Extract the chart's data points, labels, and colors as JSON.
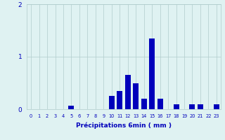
{
  "categories": [
    0,
    1,
    2,
    3,
    4,
    5,
    6,
    7,
    8,
    9,
    10,
    11,
    12,
    13,
    14,
    15,
    16,
    17,
    18,
    19,
    20,
    21,
    22,
    23
  ],
  "values": [
    0,
    0,
    0,
    0,
    0,
    0.07,
    0,
    0,
    0,
    0,
    0.25,
    0.35,
    0.65,
    0.5,
    0.2,
    1.35,
    0.2,
    0,
    0.1,
    0,
    0.1,
    0.1,
    0,
    0.1
  ],
  "bar_color": "#0000bb",
  "bg_color": "#dff2f2",
  "grid_color": "#b0cccc",
  "xlabel": "Précipitations 6min ( mm )",
  "xlabel_color": "#0000bb",
  "tick_color": "#0000bb",
  "ylim": [
    0,
    2.0
  ],
  "yticks": [
    0,
    1,
    2
  ],
  "bar_width": 0.7
}
